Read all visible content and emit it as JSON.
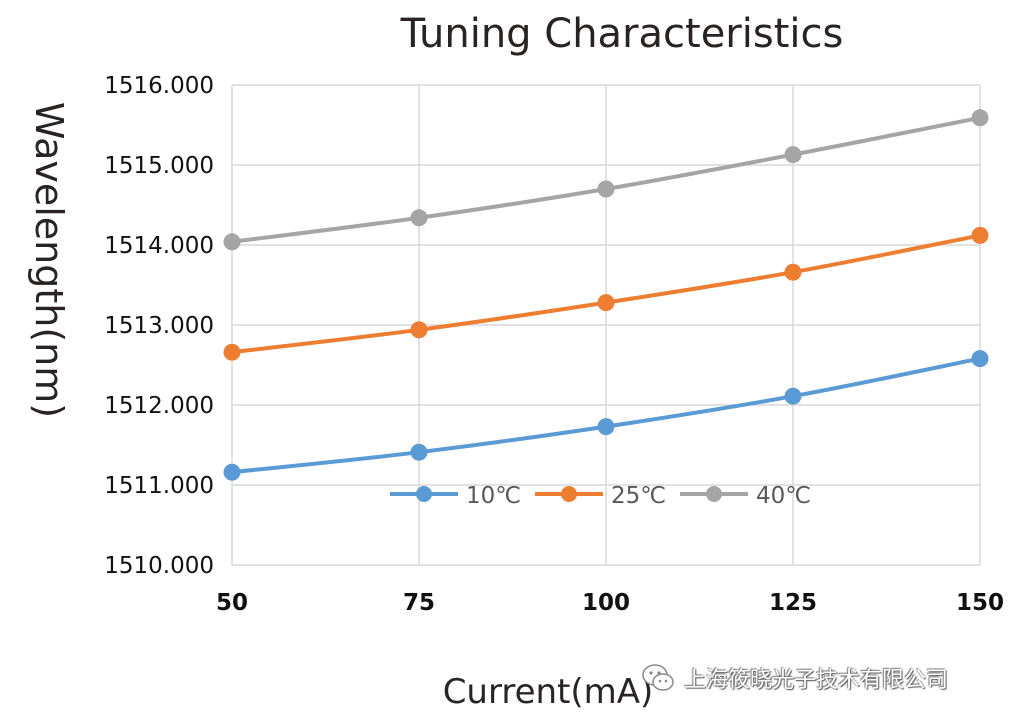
{
  "chart_data": {
    "type": "line",
    "title": "Tuning Characteristics",
    "xlabel": "Current(mA)",
    "ylabel": "Wavelength(nm)",
    "x": [
      50,
      75,
      100,
      125,
      150
    ],
    "x_tick_labels": [
      "50",
      "75",
      "100",
      "125",
      "150"
    ],
    "xlim": [
      50,
      150
    ],
    "ylim": [
      1510,
      1516
    ],
    "y_ticks": [
      1510,
      1511,
      1512,
      1513,
      1514,
      1515,
      1516
    ],
    "y_tick_labels": [
      "1510.000",
      "1511.000",
      "1512.000",
      "1513.000",
      "1514.000",
      "1515.000",
      "1516.000"
    ],
    "grid": true,
    "legend_position": "bottom-center-inside",
    "series": [
      {
        "name": "10℃",
        "color": "#5b9bd5",
        "values": [
          1511.16,
          1511.41,
          1511.73,
          1512.11,
          1512.58
        ]
      },
      {
        "name": "25℃",
        "color": "#ed7d31",
        "values": [
          1512.66,
          1512.94,
          1513.28,
          1513.66,
          1514.12
        ]
      },
      {
        "name": "40℃",
        "color": "#a5a5a5",
        "values": [
          1514.04,
          1514.34,
          1514.7,
          1515.13,
          1515.59
        ]
      }
    ]
  },
  "watermark": {
    "text": "上海筱晓光子技术有限公司",
    "icon": "wechat-icon"
  }
}
